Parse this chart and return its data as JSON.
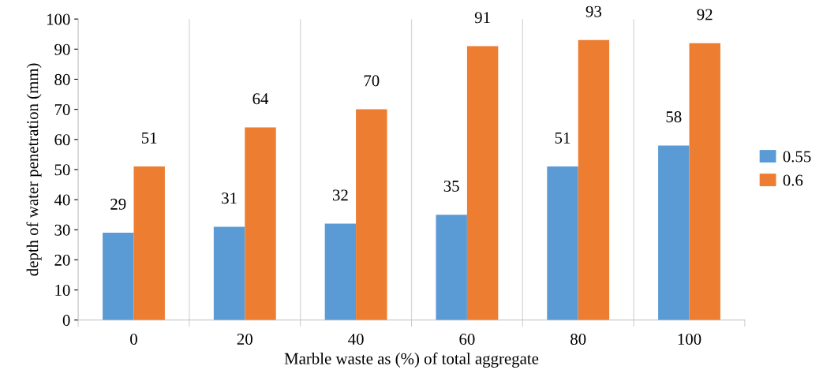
{
  "chart_data": {
    "type": "bar",
    "xlabel": "Marble waste as (%) of total aggregate",
    "ylabel": "depth of water penetration (mm)",
    "categories": [
      "0",
      "20",
      "40",
      "60",
      "80",
      "100"
    ],
    "series": [
      {
        "name": "0.55",
        "color": "#5b9bd5",
        "values": [
          29,
          31,
          32,
          35,
          51,
          58
        ]
      },
      {
        "name": "0.6",
        "color": "#ed7d31",
        "values": [
          51,
          64,
          70,
          91,
          93,
          92
        ]
      }
    ],
    "ylim": [
      0,
      100
    ],
    "yticks": [
      0,
      10,
      20,
      30,
      40,
      50,
      60,
      70,
      80,
      90,
      100
    ],
    "grid": "x",
    "legend": "right",
    "data_labels": true
  }
}
